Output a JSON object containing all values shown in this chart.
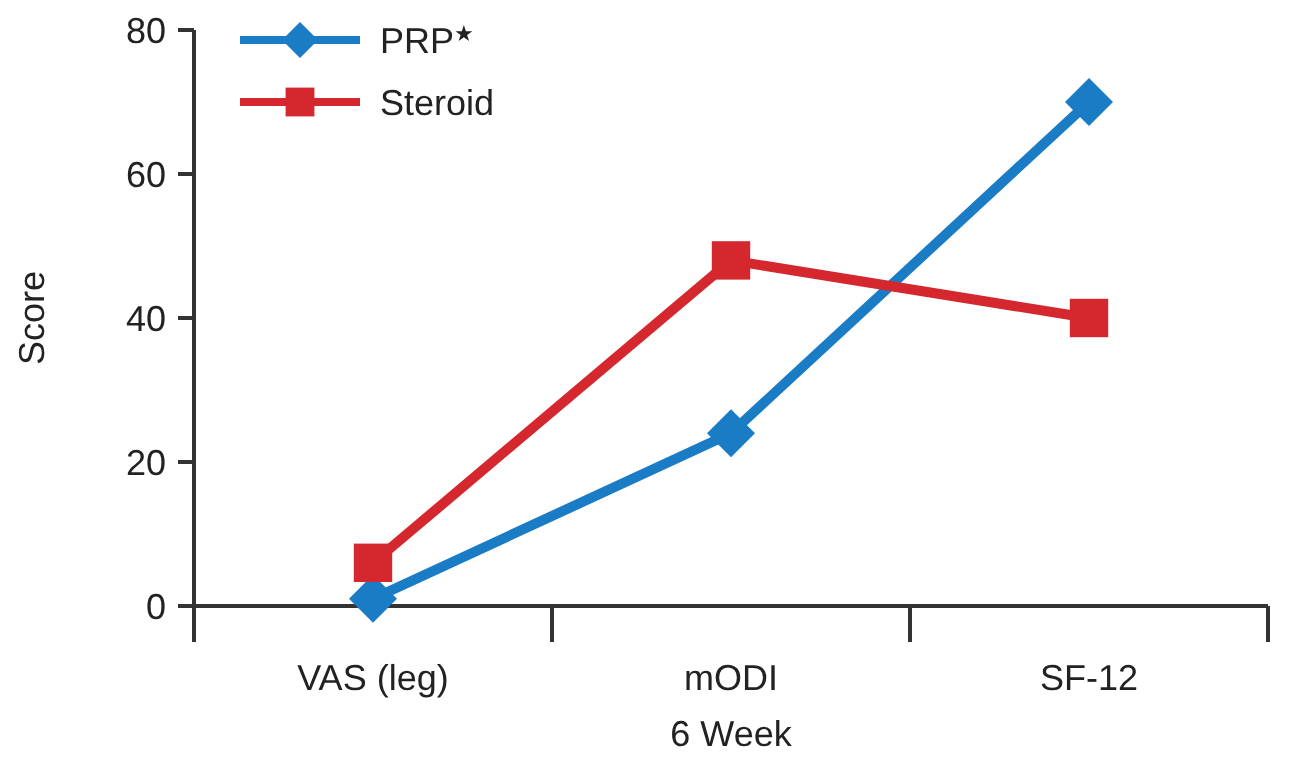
{
  "chart_data": {
    "type": "line",
    "xlabel": "6 Week",
    "ylabel": "Score",
    "categories": [
      "VAS (leg)",
      "mODI",
      "SF-12"
    ],
    "ylim": [
      0,
      80
    ],
    "yticks": [
      0,
      20,
      40,
      60,
      80
    ],
    "legend": "top left",
    "grid": false,
    "line_style": "solid",
    "series": [
      {
        "name": "PRP$^{★}$",
        "color": "#1a7cc4",
        "marker": "diamond",
        "values": [
          1,
          24,
          70
        ]
      },
      {
        "name": "Steroid",
        "color": "#d4272e",
        "marker": "square",
        "values": [
          6,
          48,
          40
        ]
      }
    ]
  }
}
